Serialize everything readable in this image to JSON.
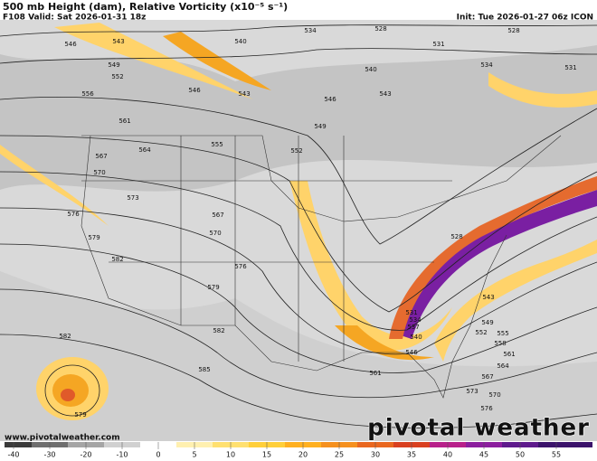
{
  "header": {
    "title": "500 mb Height (dam), Relative Vorticity (x10⁻⁵ s⁻¹)",
    "valid": "F108 Valid: Sat 2026-01-31 18z",
    "init": "Init: Tue 2026-01-27 06z ICON"
  },
  "footer": {
    "website": "www.pivotalweather.com",
    "logo": "pivotal weather"
  },
  "colorbar": {
    "ticks": [
      -40,
      -30,
      -20,
      -10,
      0,
      5,
      10,
      15,
      20,
      25,
      30,
      35,
      40,
      45,
      50,
      55
    ],
    "colors": [
      "#3a3a3a",
      "#6e6e6e",
      "#a5a5a5",
      "#d0d0d0",
      "#ffffff",
      "#fff0b0",
      "#ffe070",
      "#ffcf3a",
      "#ffb020",
      "#f5901e",
      "#e9671f",
      "#d94020",
      "#b8208a",
      "#8c1e9e",
      "#5e1a8c",
      "#3b136b"
    ]
  },
  "contour_labels": [
    "546",
    "543",
    "549",
    "552",
    "556",
    "561",
    "564",
    "567",
    "570",
    "573",
    "576",
    "579",
    "582",
    "546",
    "543",
    "540",
    "534",
    "528",
    "531",
    "528",
    "534",
    "531",
    "540",
    "543",
    "546",
    "549",
    "555",
    "552",
    "567",
    "570",
    "576",
    "579",
    "582",
    "582",
    "585",
    "579",
    "561",
    "546",
    "540",
    "537",
    "534",
    "531",
    "528",
    "543",
    "549",
    "552",
    "555",
    "558",
    "561",
    "564",
    "567",
    "570",
    "573",
    "576"
  ]
}
